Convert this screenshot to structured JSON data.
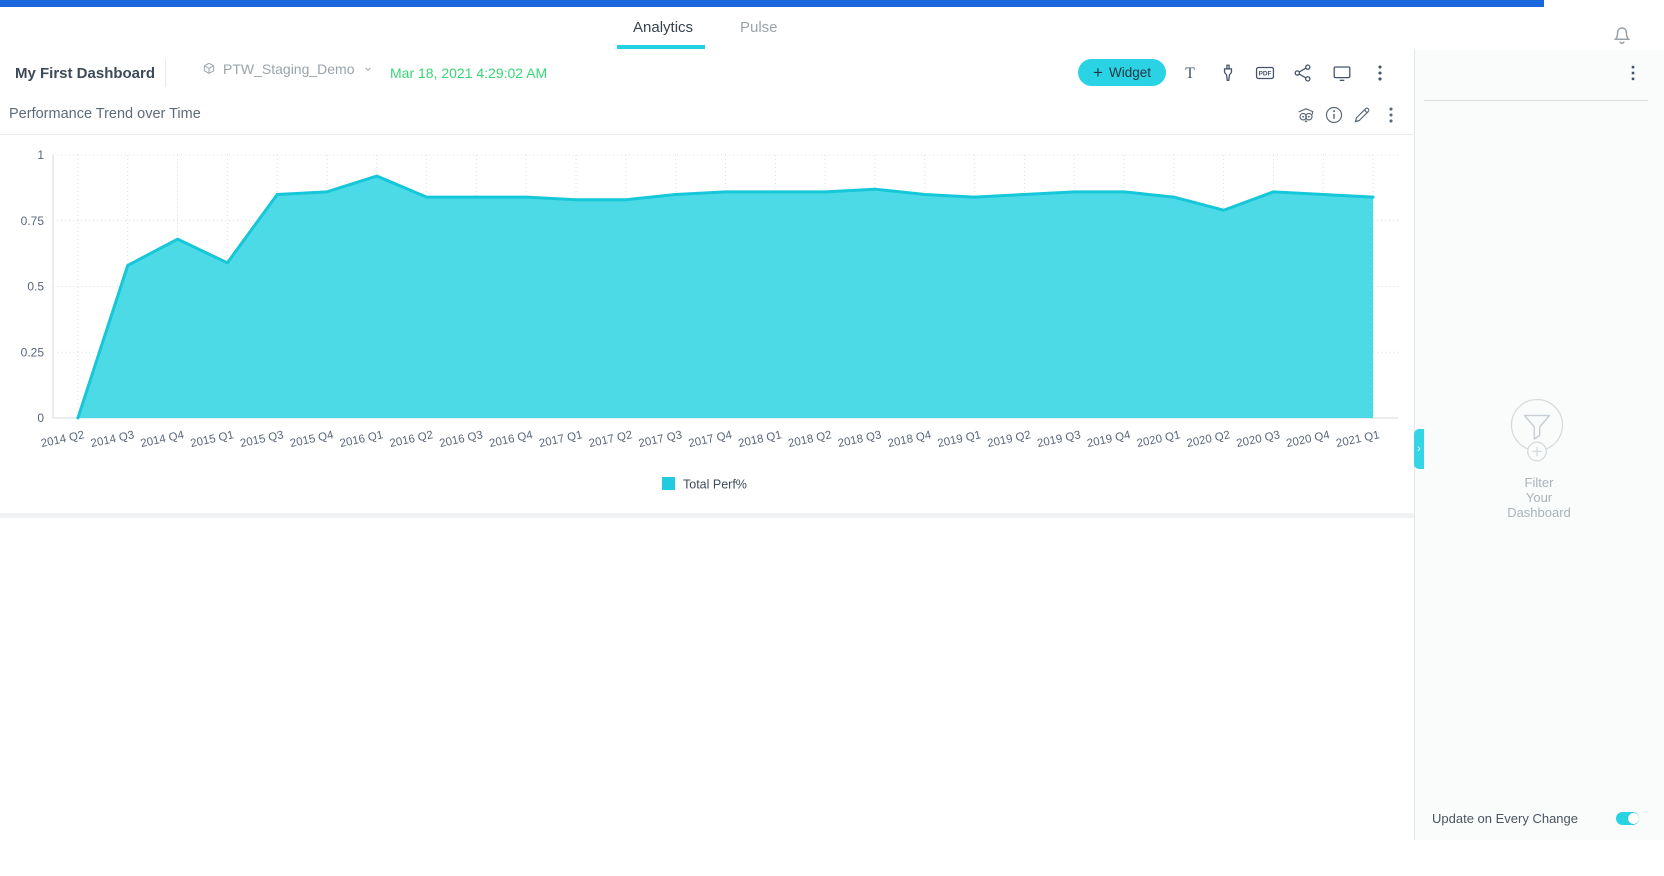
{
  "topnav": {
    "tabs": [
      {
        "label": "Analytics",
        "active": true
      },
      {
        "label": "Pulse",
        "active": false
      }
    ]
  },
  "header": {
    "dashboard_title": "My First Dashboard",
    "datasource": "PTW_Staging_Demo",
    "timestamp": "Mar 18, 2021 4:29:02 AM",
    "widget_button_label": "Widget",
    "widget_button_plus": "+"
  },
  "toolbar_icons": [
    "text-widget-icon",
    "design-brush-icon",
    "pdf-export-icon",
    "share-icon",
    "present-monitor-icon",
    "more-options-icon"
  ],
  "widget": {
    "title": "Performance Trend over Time",
    "header_icons": [
      "insights-owl-icon",
      "info-icon",
      "edit-pencil-icon",
      "more-options-icon"
    ]
  },
  "filter_panel": {
    "empty_lines": [
      "Filter",
      "Your",
      "Dashboard"
    ],
    "update_toggle_label": "Update on Every Change",
    "toggle_on": true
  },
  "colors": {
    "accent_cyan": "#2ad3e4",
    "chart_line": "#15c7d8",
    "chart_fill": "#3ed7e5",
    "timestamp_green": "#36d576",
    "top_bar_blue": "#1a67dd"
  },
  "chart_data": {
    "type": "area",
    "title": "",
    "xlabel": "",
    "ylabel": "",
    "ylim": [
      0,
      1
    ],
    "yticks": [
      0,
      0.25,
      0.5,
      0.75,
      1
    ],
    "grid": true,
    "legend_position": "bottom",
    "categories": [
      "2014 Q2",
      "2014 Q3",
      "2014 Q4",
      "2015 Q1",
      "2015 Q3",
      "2015 Q4",
      "2016 Q1",
      "2016 Q2",
      "2016 Q3",
      "2016 Q4",
      "2017 Q1",
      "2017 Q2",
      "2017 Q3",
      "2017 Q4",
      "2018 Q1",
      "2018 Q2",
      "2018 Q3",
      "2018 Q4",
      "2019 Q1",
      "2019 Q2",
      "2019 Q3",
      "2019 Q4",
      "2020 Q1",
      "2020 Q2",
      "2020 Q3",
      "2020 Q4",
      "2021 Q1"
    ],
    "series": [
      {
        "name": "Total Perf%",
        "values": [
          0,
          0.58,
          0.68,
          0.59,
          0.85,
          0.86,
          0.92,
          0.84,
          0.84,
          0.84,
          0.83,
          0.83,
          0.85,
          0.86,
          0.86,
          0.86,
          0.87,
          0.85,
          0.84,
          0.85,
          0.86,
          0.86,
          0.84,
          0.79,
          0.86,
          0.85,
          0.84
        ]
      }
    ]
  }
}
